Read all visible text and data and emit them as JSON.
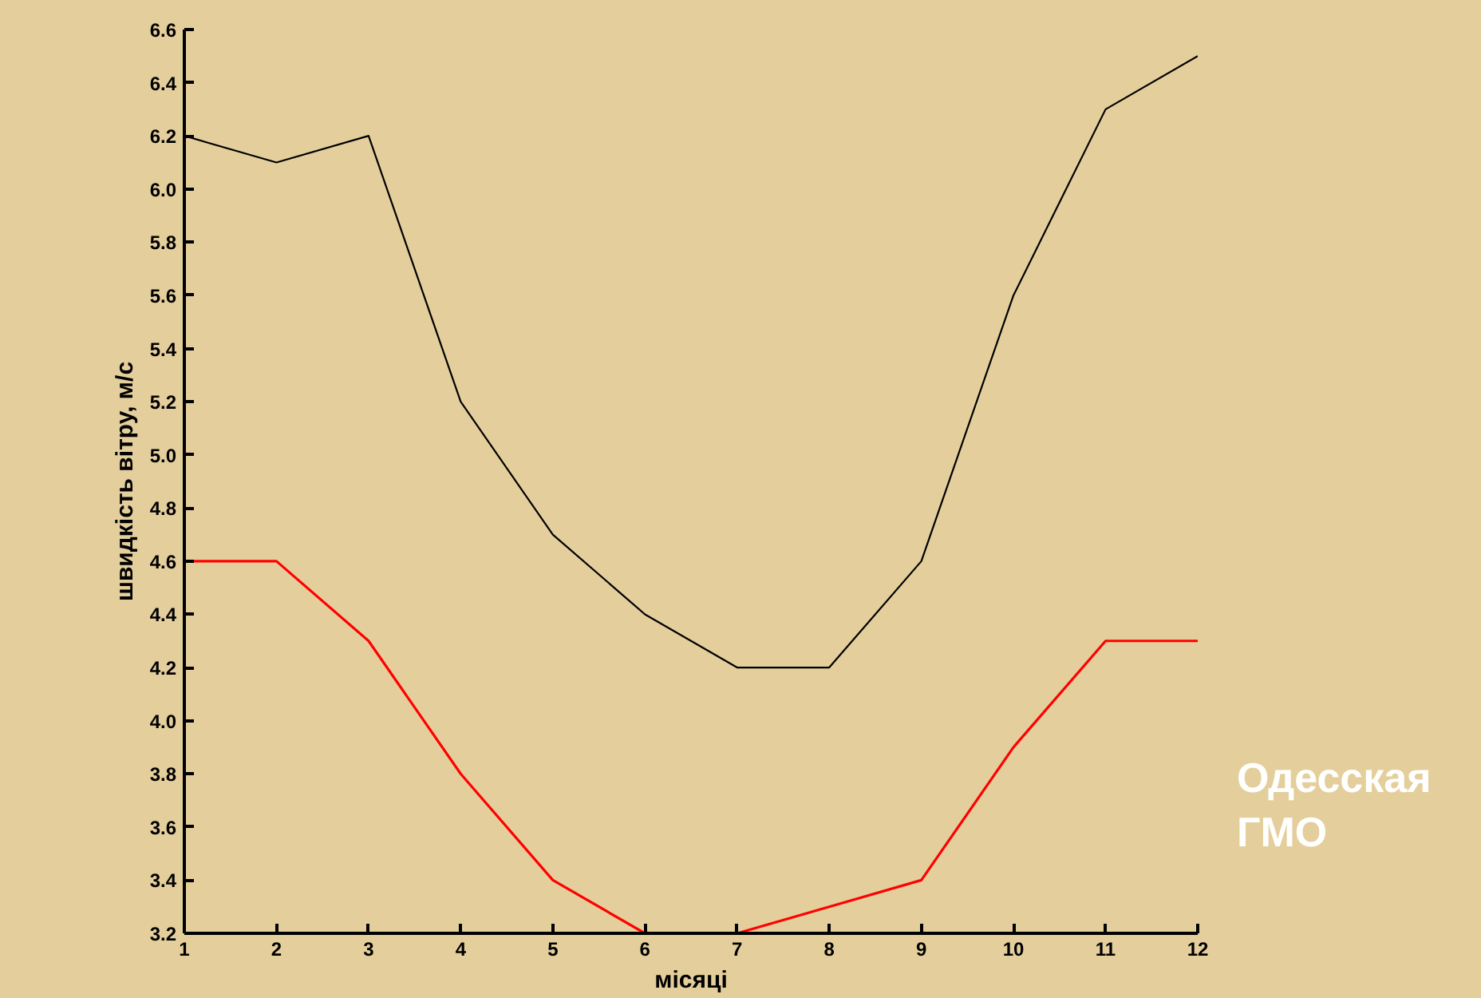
{
  "chart_data": {
    "type": "line",
    "xlabel": "місяці",
    "ylabel": "швидкість вітру, м/с",
    "x": [
      1,
      2,
      3,
      4,
      5,
      6,
      7,
      8,
      9,
      10,
      11,
      12
    ],
    "series": [
      {
        "color": "#000000",
        "values": [
          6.2,
          6.1,
          6.2,
          5.2,
          4.7,
          4.4,
          4.2,
          4.2,
          4.6,
          5.6,
          6.3,
          6.5
        ]
      },
      {
        "color": "#ff0000",
        "values": [
          4.6,
          4.6,
          4.3,
          3.8,
          3.4,
          3.2,
          3.2,
          3.3,
          3.4,
          3.9,
          4.3,
          4.3
        ]
      }
    ],
    "xlim": [
      1,
      12
    ],
    "xticks": [
      1,
      2,
      3,
      4,
      5,
      6,
      7,
      8,
      9,
      10,
      11,
      12
    ],
    "ylim": [
      3.2,
      6.6
    ],
    "yticks": [
      3.2,
      3.4,
      3.6,
      3.8,
      {
        "value": 4,
        "label": "4.0"
      },
      4.2,
      4.4,
      4.6,
      4.8,
      {
        "value": 5,
        "label": "5.0"
      },
      5.2,
      5.4,
      5.6,
      5.8,
      {
        "value": 6,
        "label": "6.0"
      },
      6.2,
      6.4,
      6.6
    ],
    "grid": false,
    "marker": "none",
    "line_style": "solid",
    "annotations": [
      "Одесская ГМО"
    ]
  }
}
